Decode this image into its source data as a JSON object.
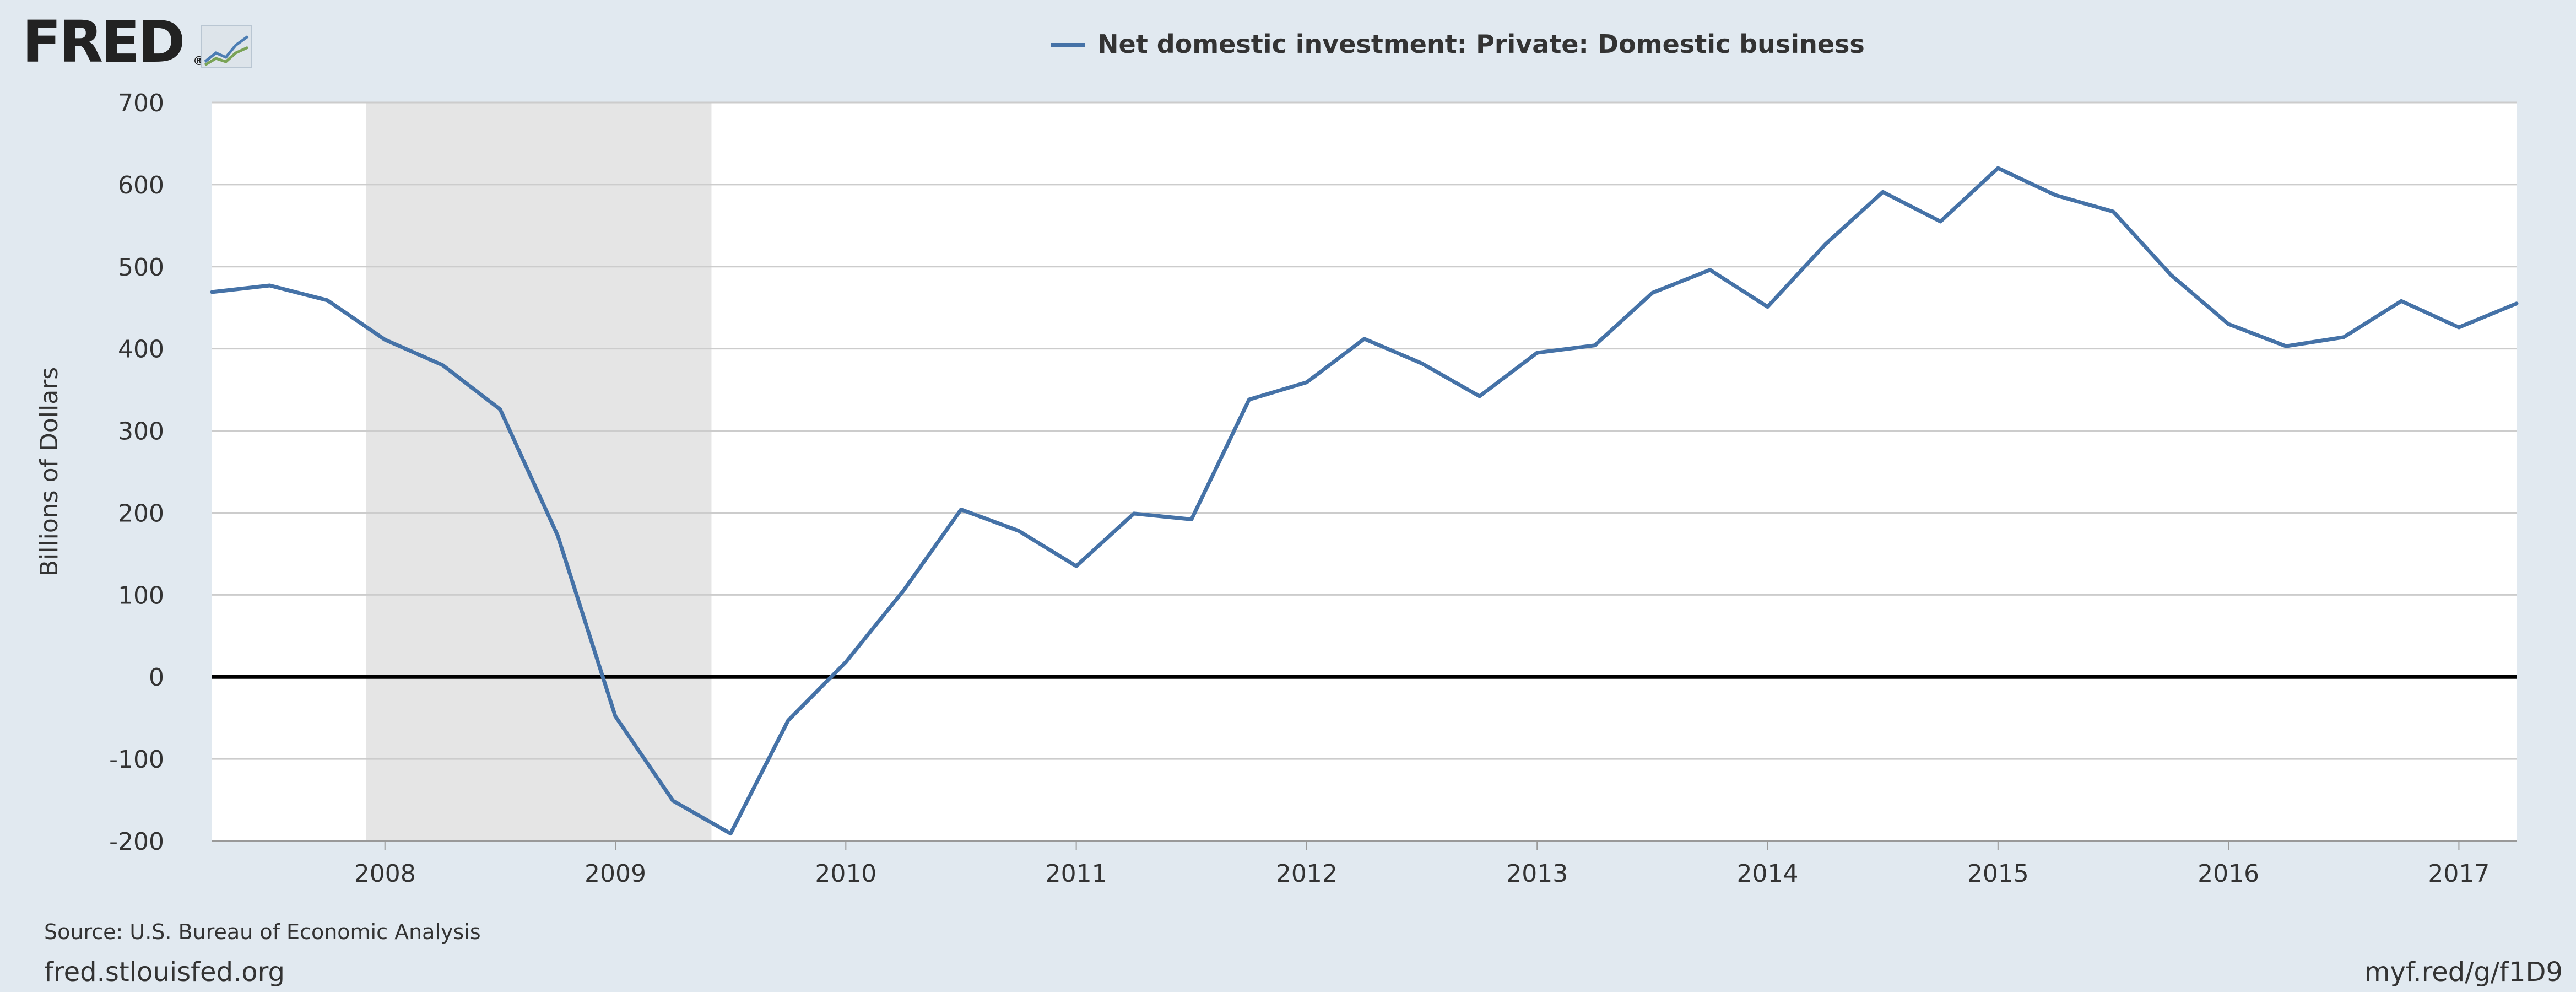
{
  "logo": {
    "text": "FRED",
    "registered": "®",
    "icon": "line-graph-icon"
  },
  "footer": {
    "source": "Source: U.S. Bureau of Economic Analysis",
    "site": "fred.stlouisfed.org",
    "short_link": "myf.red/g/f1D9"
  },
  "colors": {
    "background": "#e1e9f0",
    "plot_background": "#ffffff",
    "series_line": "#4572a7",
    "recession_shade": "#e5e5e5",
    "gridline": "#cccccc",
    "zero_line": "#000000",
    "text": "#333333"
  },
  "chart_data": {
    "type": "line",
    "title": "",
    "xlabel": "",
    "ylabel": "Billions of Dollars",
    "ylim": [
      -200,
      700
    ],
    "yticks": [
      -200,
      -100,
      0,
      100,
      200,
      300,
      400,
      500,
      600,
      700
    ],
    "xlim": [
      2007.25,
      2017.25
    ],
    "xticks": [
      2008,
      2009,
      2010,
      2011,
      2012,
      2013,
      2014,
      2015,
      2016,
      2017
    ],
    "grid": true,
    "legend": "top-center",
    "recession_shading": [
      [
        2007.917,
        2009.417
      ]
    ],
    "series": [
      {
        "name": "Net domestic investment: Private: Domestic business",
        "x": [
          2007.25,
          2007.5,
          2007.75,
          2008.0,
          2008.25,
          2008.5,
          2008.75,
          2009.0,
          2009.25,
          2009.5,
          2009.75,
          2010.0,
          2010.25,
          2010.5,
          2010.75,
          2011.0,
          2011.25,
          2011.5,
          2011.75,
          2012.0,
          2012.25,
          2012.5,
          2012.75,
          2013.0,
          2013.25,
          2013.5,
          2013.75,
          2014.0,
          2014.25,
          2014.5,
          2014.75,
          2015.0,
          2015.25,
          2015.5,
          2015.75,
          2016.0,
          2016.25,
          2016.5,
          2016.75,
          2017.0,
          2017.25
        ],
        "values": [
          469,
          477,
          459,
          411,
          380,
          326,
          172,
          -48,
          -151,
          -191,
          -53,
          18,
          105,
          204,
          178,
          135,
          199,
          192,
          338,
          359,
          412,
          382,
          342,
          395,
          404,
          468,
          496,
          451,
          527,
          591,
          555,
          620,
          587,
          567,
          490,
          430,
          403,
          414,
          458,
          426,
          455
        ]
      }
    ]
  }
}
